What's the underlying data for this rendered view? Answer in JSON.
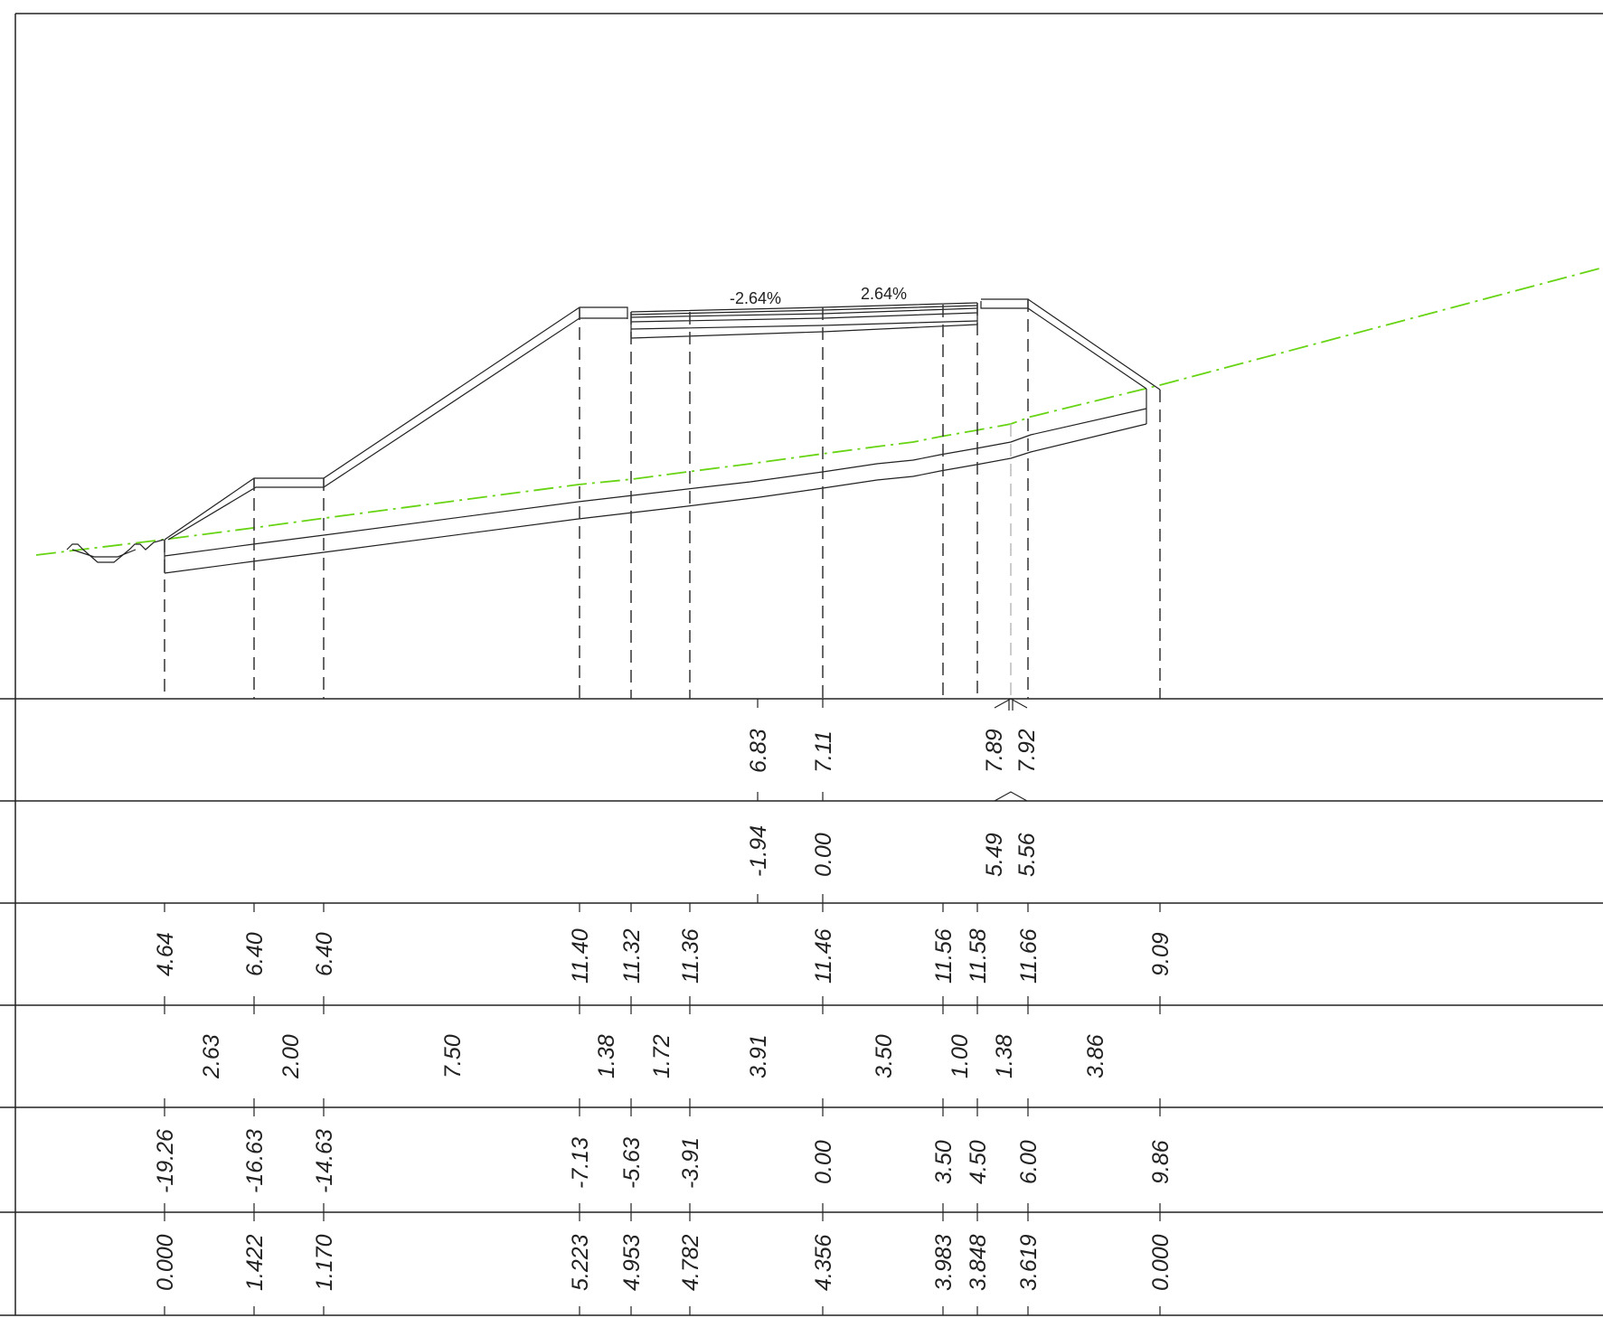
{
  "drawing": {
    "colors": {
      "ground_line": "#66d412",
      "lines": "#222222"
    },
    "grade_labels": [
      "-2.64%",
      "2.64%"
    ]
  },
  "table": {
    "rows": [
      {
        "id": "row1",
        "values": [
          "6.83",
          "7.11",
          "7.89",
          "7.92"
        ]
      },
      {
        "id": "row2",
        "values": [
          "-1.94",
          "0.00",
          "5.49",
          "5.56"
        ]
      },
      {
        "id": "row3",
        "values": [
          "4.64",
          "6.40",
          "6.40",
          "11.40",
          "11.32",
          "11.36",
          "11.46",
          "11.56",
          "11.58",
          "11.66",
          "9.09"
        ]
      },
      {
        "id": "row4",
        "values": [
          "2.63",
          "2.00",
          "7.50",
          "1.38",
          "1.72",
          "3.91",
          "3.50",
          "1.00",
          "1.38",
          "3.86"
        ]
      },
      {
        "id": "row5",
        "values": [
          "-19.26",
          "-16.63",
          "-14.63",
          "-7.13",
          "-5.63",
          "-3.91",
          "0.00",
          "3.50",
          "4.50",
          "6.00",
          "9.86"
        ]
      },
      {
        "id": "row6",
        "values": [
          "0.000",
          "1.422",
          "1.170",
          "5.223",
          "4.953",
          "4.782",
          "4.356",
          "3.983",
          "3.848",
          "3.619",
          "0.000"
        ]
      }
    ]
  }
}
